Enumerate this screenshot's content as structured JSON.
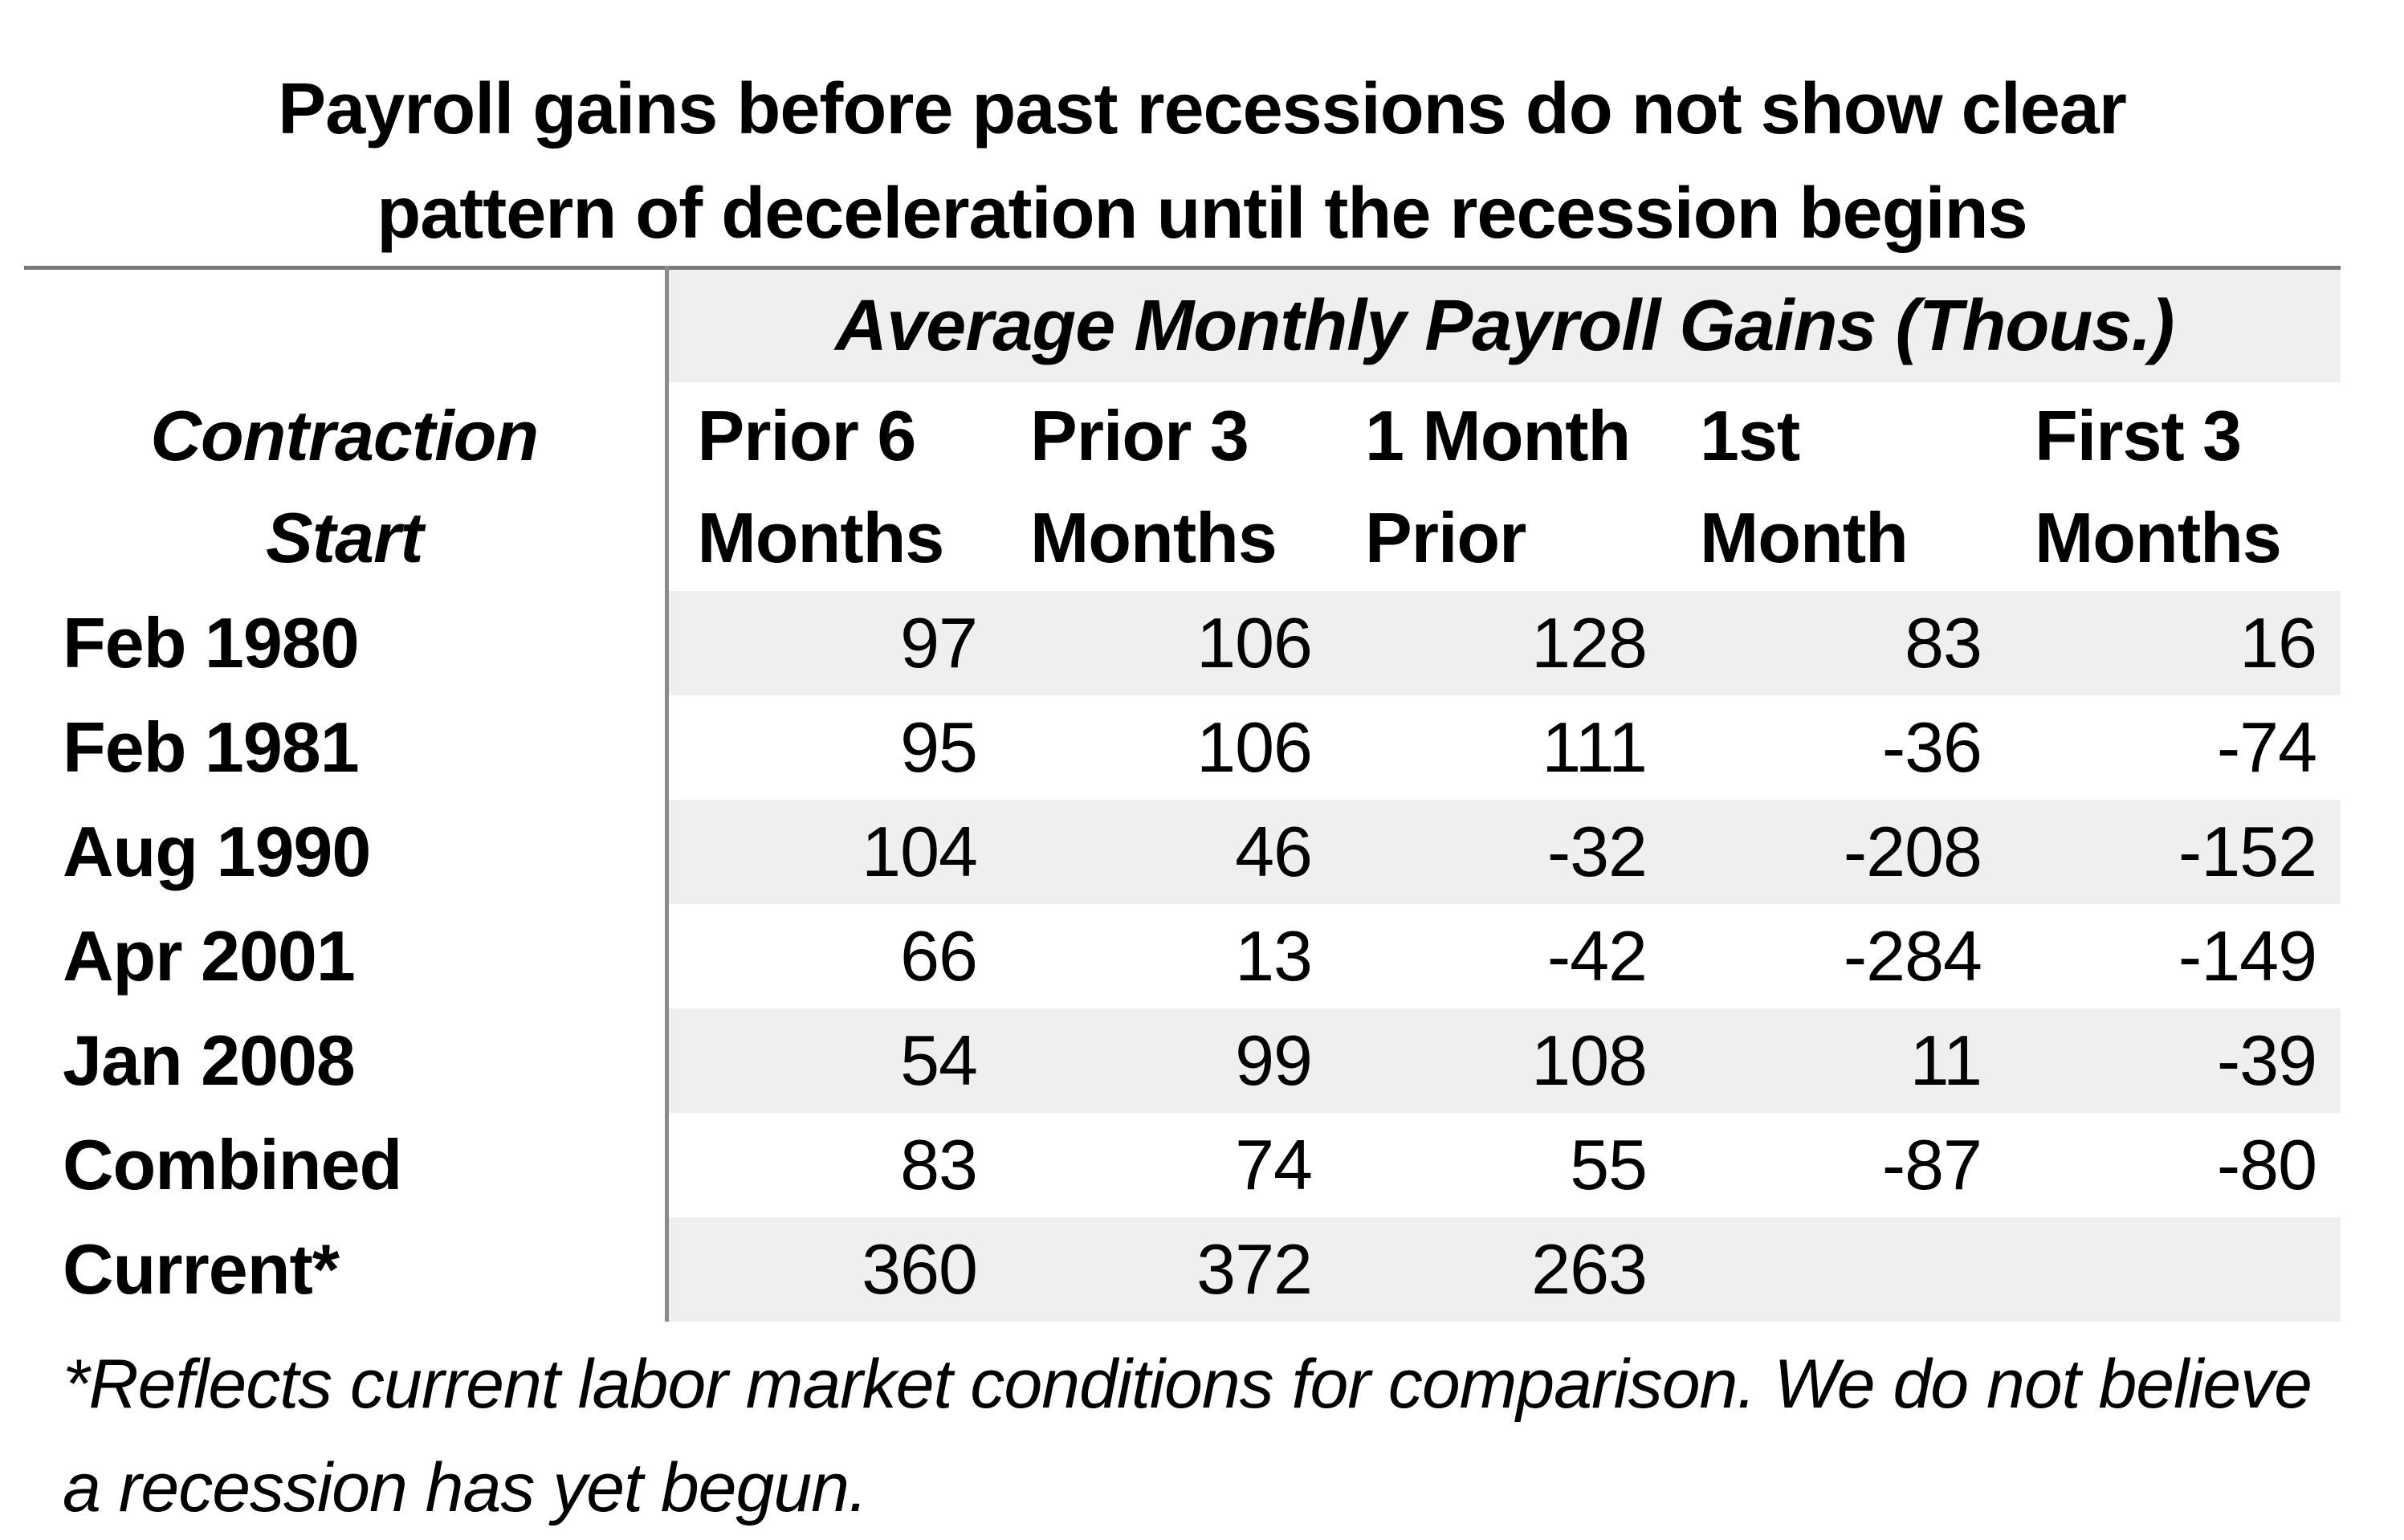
{
  "chart_data": {
    "type": "table",
    "title": "Payroll gains before past recessions do not show clear pattern of deceleration until the recession begins",
    "group_header": "Average Monthly Payroll Gains (Thous.)",
    "row_header": "Contraction Start",
    "columns": [
      "Prior 6 Months",
      "Prior 3 Months",
      "1 Month Prior",
      "1st Month",
      "First 3 Months"
    ],
    "rows": [
      {
        "label": "Feb 1980",
        "values": [
          97,
          106,
          128,
          83,
          16
        ]
      },
      {
        "label": "Feb 1981",
        "values": [
          95,
          106,
          111,
          -36,
          -74
        ]
      },
      {
        "label": "Aug 1990",
        "values": [
          104,
          46,
          -32,
          -208,
          -152
        ]
      },
      {
        "label": "Apr 2001",
        "values": [
          66,
          13,
          -42,
          -284,
          -149
        ]
      },
      {
        "label": "Jan 2008",
        "values": [
          54,
          99,
          108,
          11,
          -39
        ]
      },
      {
        "label": "Combined",
        "values": [
          83,
          74,
          55,
          -87,
          -80
        ]
      },
      {
        "label": "Current*",
        "values": [
          360,
          372,
          263,
          "",
          ""
        ]
      }
    ],
    "footnote": "*Reflects current labor market conditions for comparison. We do not believe a recession has yet begun.",
    "layout": {
      "legend_position": "none",
      "grid": "off",
      "striped_rows": true
    },
    "colors": {
      "stripe_fill": "#efefef",
      "rule_line": "#787878",
      "divider_line": "#8a8a8a",
      "text": "#000000",
      "background": "#ffffff"
    }
  }
}
